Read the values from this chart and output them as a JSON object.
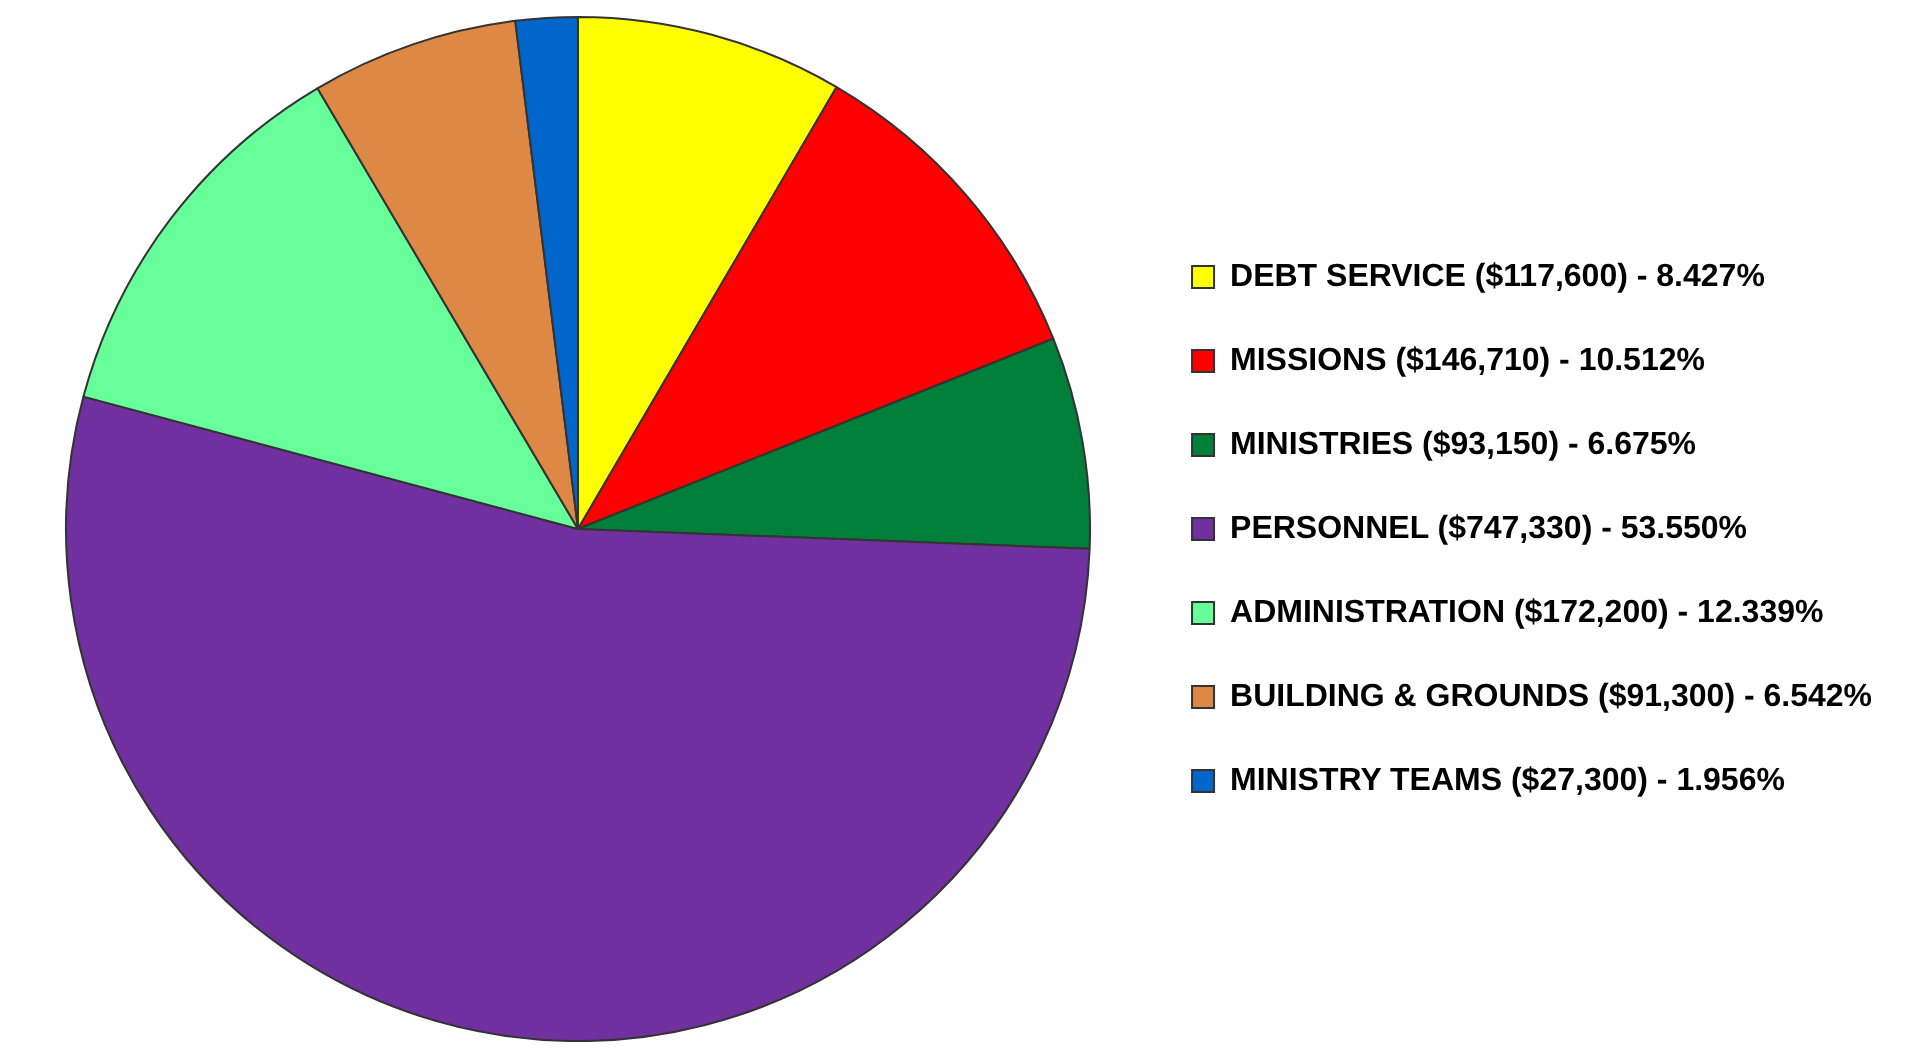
{
  "chart_data": {
    "type": "pie",
    "categories": [
      "DEBT SERVICE ($117,600) - 8.427%",
      "MISSIONS ($146,710) - 10.512%",
      "MINISTRIES ($93,150) - 6.675%",
      "PERSONNEL ($747,330) - 53.550%",
      "ADMINISTRATION ($172,200) - 12.339%",
      "BUILDING & GROUNDS ($91,300) - 6.542%",
      "MINISTRY TEAMS ($27,300) - 1.956%"
    ],
    "values": [
      117600,
      146710,
      93150,
      747330,
      172200,
      91300,
      27300
    ],
    "colors": [
      "#ffff00",
      "#ff0000",
      "#007f3a",
      "#7030a0",
      "#66ff99",
      "#dd8844",
      "#0066cc"
    ],
    "legend": "right"
  }
}
